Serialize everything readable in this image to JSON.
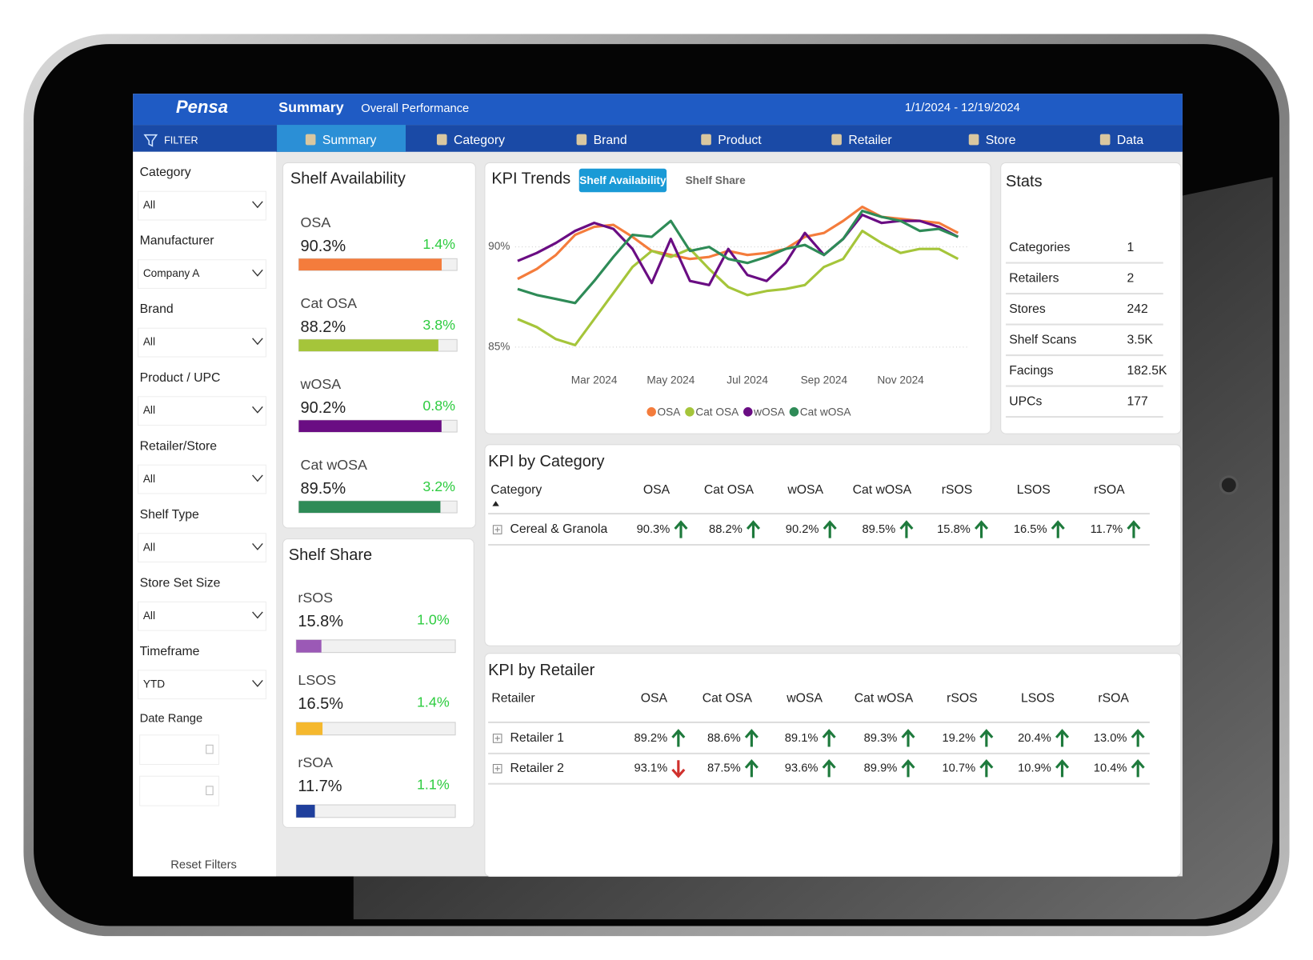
{
  "header": {
    "logo": "Pensa",
    "title": "Summary",
    "subtitle": "Overall Performance",
    "date_range": "1/1/2024 - 12/19/2024"
  },
  "nav": {
    "filter": "FILTER",
    "tabs": [
      "Summary",
      "Category",
      "Brand",
      "Product",
      "Retailer",
      "Store",
      "Data"
    ]
  },
  "filters": {
    "items": [
      {
        "label": "Category",
        "value": "All"
      },
      {
        "label": "Manufacturer",
        "value": "Company A"
      },
      {
        "label": "Brand",
        "value": "All"
      },
      {
        "label": "Product / UPC",
        "value": "All"
      },
      {
        "label": "Retailer/Store",
        "value": "All"
      },
      {
        "label": "Shelf Type",
        "value": "All"
      },
      {
        "label": "Store Set Size",
        "value": "All"
      },
      {
        "label": "Timeframe",
        "value": "YTD"
      }
    ],
    "date_range_label": "Date Range",
    "reset": "Reset Filters"
  },
  "shelf_availability": {
    "title": "Shelf Availability",
    "xlim": [
      0,
      100
    ],
    "items": [
      {
        "name": "OSA",
        "value": 90.3,
        "value_label": "90.3%",
        "change": "1.4%",
        "color": "#f47c3c"
      },
      {
        "name": "Cat OSA",
        "value": 88.2,
        "value_label": "88.2%",
        "change": "3.8%",
        "color": "#a5c53a"
      },
      {
        "name": "wOSA",
        "value": 90.2,
        "value_label": "90.2%",
        "change": "0.8%",
        "color": "#6a0d83"
      },
      {
        "name": "Cat wOSA",
        "value": 89.5,
        "value_label": "89.5%",
        "change": "3.2%",
        "color": "#2e8b57"
      }
    ]
  },
  "shelf_share": {
    "title": "Shelf Share",
    "xlim": [
      0,
      100
    ],
    "items": [
      {
        "name": "rSOS",
        "value": 15.8,
        "value_label": "15.8%",
        "change": "1.0%",
        "color": "#9b59b6"
      },
      {
        "name": "LSOS",
        "value": 16.5,
        "value_label": "16.5%",
        "change": "1.4%",
        "color": "#f5b82e"
      },
      {
        "name": "rSOA",
        "value": 11.7,
        "value_label": "11.7%",
        "change": "1.1%",
        "color": "#1f3f9c"
      }
    ]
  },
  "kpi_trends": {
    "title": "KPI Trends",
    "tabs": [
      "Shelf Availability",
      "Shelf Share"
    ],
    "chart_data": {
      "type": "line",
      "categories": [
        null,
        null,
        null,
        null,
        "Mar 2024",
        null,
        null,
        null,
        "May 2024",
        null,
        null,
        null,
        "Jul 2024",
        null,
        null,
        null,
        "Sep 2024",
        null,
        null,
        null,
        "Nov 2024",
        null,
        null,
        null
      ],
      "series": [
        {
          "name": "OSA",
          "color": "#f47c3c",
          "values": [
            88.4,
            88.9,
            89.6,
            90.6,
            91.0,
            91.1,
            90.5,
            89.8,
            89.6,
            89.4,
            89.5,
            89.8,
            89.6,
            89.7,
            89.9,
            90.5,
            90.7,
            91.3,
            92.0,
            91.5,
            91.4,
            91.3,
            91.2,
            90.7
          ]
        },
        {
          "name": "Cat OSA",
          "color": "#a5c53a",
          "values": [
            86.4,
            86.0,
            85.4,
            85.1,
            86.4,
            87.7,
            89.0,
            89.8,
            89.5,
            89.9,
            88.9,
            88.0,
            87.6,
            87.8,
            87.9,
            88.1,
            89.0,
            89.4,
            90.8,
            90.2,
            89.7,
            89.9,
            89.9,
            89.4
          ]
        },
        {
          "name": "wOSA",
          "color": "#6a0d83",
          "values": [
            89.3,
            89.7,
            90.2,
            90.8,
            91.2,
            90.9,
            89.9,
            88.2,
            90.4,
            88.3,
            88.1,
            89.9,
            88.6,
            88.3,
            89.2,
            90.7,
            89.6,
            90.4,
            91.6,
            91.2,
            91.3,
            91.3,
            91.0,
            90.5
          ]
        },
        {
          "name": "Cat wOSA",
          "color": "#2e8b57",
          "values": [
            87.9,
            87.6,
            87.4,
            87.2,
            88.3,
            89.5,
            90.6,
            90.5,
            91.3,
            89.8,
            90.0,
            89.4,
            89.2,
            89.5,
            89.9,
            90.1,
            89.6,
            90.4,
            91.8,
            91.5,
            91.3,
            90.8,
            90.9,
            90.5
          ]
        }
      ],
      "ylim": [
        84.5,
        92.5
      ],
      "yticks": [
        {
          "value": 85,
          "label": "85%"
        },
        {
          "value": 90,
          "label": "90%"
        }
      ],
      "grid": true,
      "legend": "bottom"
    }
  },
  "stats": {
    "title": "Stats",
    "rows": [
      [
        "Categories",
        "1"
      ],
      [
        "Retailers",
        "2"
      ],
      [
        "Stores",
        "242"
      ],
      [
        "Shelf Scans",
        "3.5K"
      ],
      [
        "Facings",
        "182.5K"
      ],
      [
        "UPCs",
        "177"
      ]
    ]
  },
  "kpi_by_category": {
    "title": "KPI by Category",
    "columns": [
      "Category",
      "OSA",
      "Cat OSA",
      "wOSA",
      "Cat wOSA",
      "rSOS",
      "LSOS",
      "rSOA"
    ],
    "rows": [
      {
        "name": "Cereal & Granola",
        "cells": [
          {
            "value": "90.3%",
            "trend": "up"
          },
          {
            "value": "88.2%",
            "trend": "up"
          },
          {
            "value": "90.2%",
            "trend": "up"
          },
          {
            "value": "89.5%",
            "trend": "up"
          },
          {
            "value": "15.8%",
            "trend": "up"
          },
          {
            "value": "16.5%",
            "trend": "up"
          },
          {
            "value": "11.7%",
            "trend": "up"
          }
        ]
      }
    ]
  },
  "kpi_by_retailer": {
    "title": "KPI by Retailer",
    "columns": [
      "Retailer",
      "OSA",
      "Cat OSA",
      "wOSA",
      "Cat wOSA",
      "rSOS",
      "LSOS",
      "rSOA"
    ],
    "rows": [
      {
        "name": "Retailer 1",
        "cells": [
          {
            "value": "89.2%",
            "trend": "up"
          },
          {
            "value": "88.6%",
            "trend": "up"
          },
          {
            "value": "89.1%",
            "trend": "up"
          },
          {
            "value": "89.3%",
            "trend": "up"
          },
          {
            "value": "19.2%",
            "trend": "up"
          },
          {
            "value": "20.4%",
            "trend": "up"
          },
          {
            "value": "13.0%",
            "trend": "up"
          }
        ]
      },
      {
        "name": "Retailer 2",
        "cells": [
          {
            "value": "93.1%",
            "trend": "down"
          },
          {
            "value": "87.5%",
            "trend": "up"
          },
          {
            "value": "93.6%",
            "trend": "up"
          },
          {
            "value": "89.9%",
            "trend": "up"
          },
          {
            "value": "10.7%",
            "trend": "up"
          },
          {
            "value": "10.9%",
            "trend": "up"
          },
          {
            "value": "10.4%",
            "trend": "up"
          }
        ]
      }
    ]
  }
}
